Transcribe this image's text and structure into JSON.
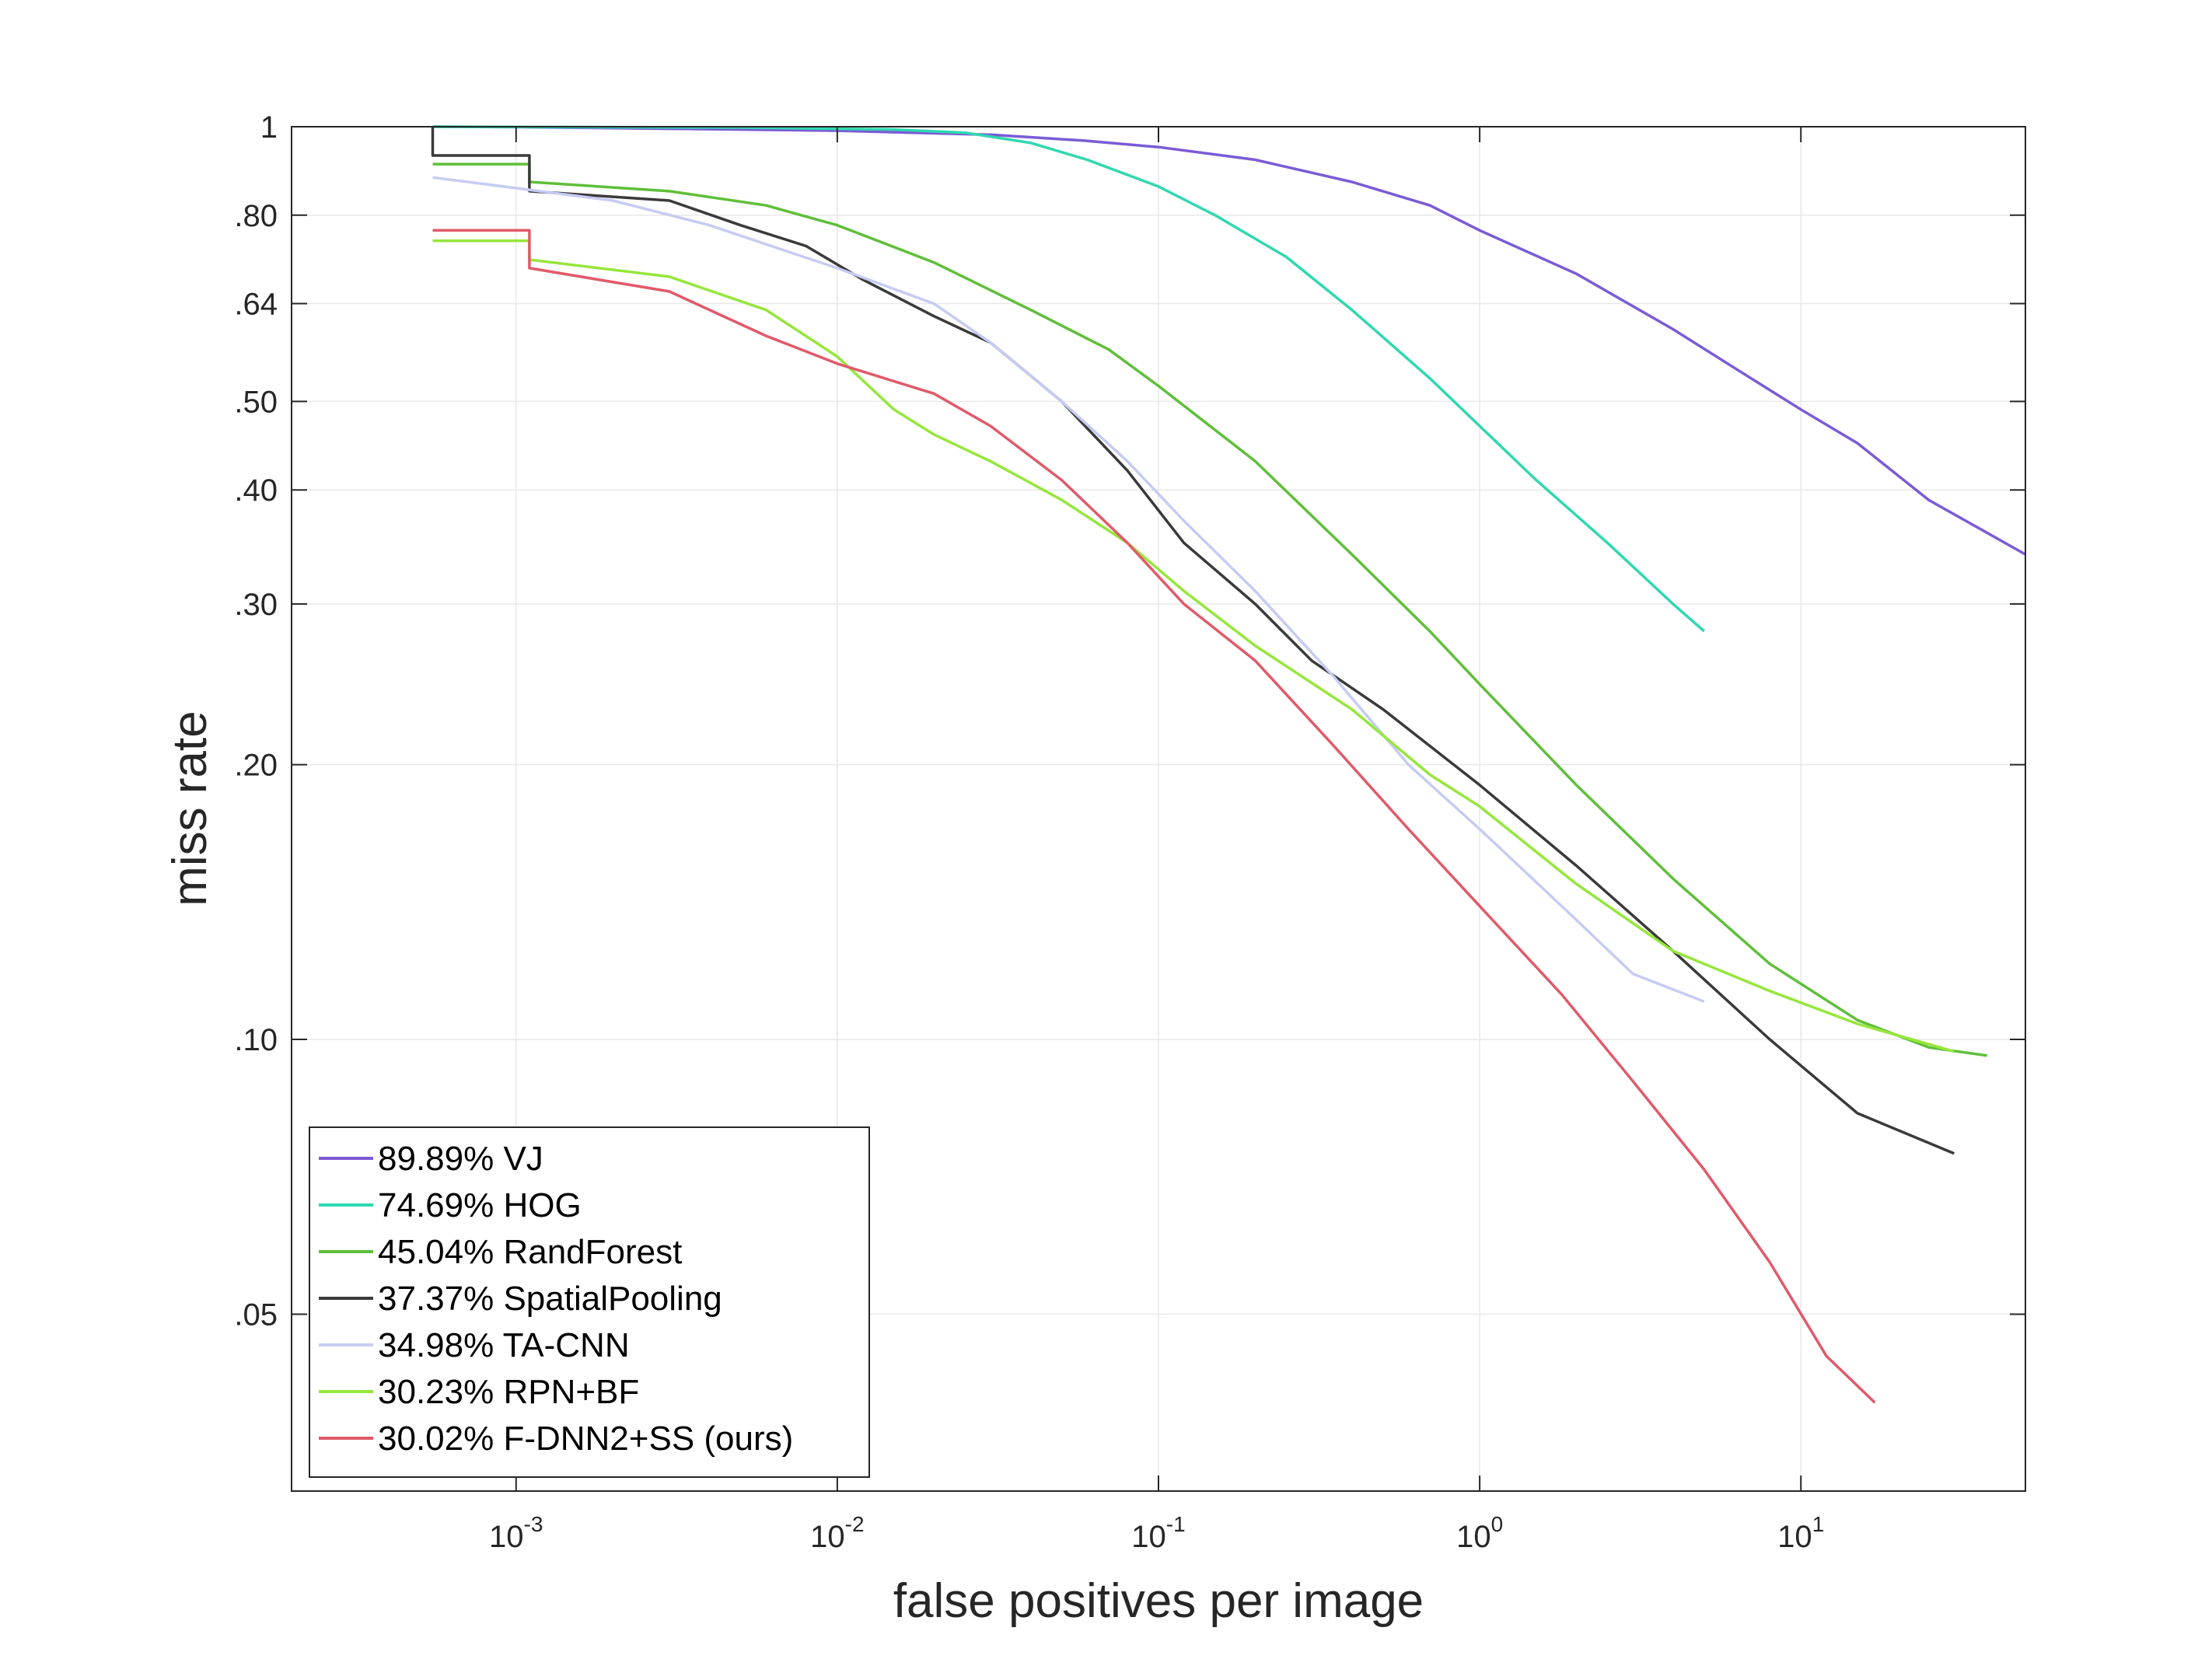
{
  "chart_data": {
    "type": "line",
    "title": "",
    "xlabel": "false positives per image",
    "ylabel": "miss rate",
    "x_scale": "log",
    "y_scale": "log",
    "xlim": [
      0.0002,
      50
    ],
    "ylim": [
      0.032,
      1
    ],
    "grid": true,
    "legend_position": "bottom-left",
    "x_ticks": [
      {
        "value": 0.001,
        "base": "10",
        "exp": "-3"
      },
      {
        "value": 0.01,
        "base": "10",
        "exp": "-2"
      },
      {
        "value": 0.1,
        "base": "10",
        "exp": "-1"
      },
      {
        "value": 1,
        "base": "10",
        "exp": "0"
      },
      {
        "value": 10,
        "base": "10",
        "exp": "1"
      }
    ],
    "y_ticks": [
      {
        "value": 1,
        "label": "1"
      },
      {
        "value": 0.8,
        "label": ".80"
      },
      {
        "value": 0.64,
        "label": ".64"
      },
      {
        "value": 0.5,
        "label": ".50"
      },
      {
        "value": 0.4,
        "label": ".40"
      },
      {
        "value": 0.3,
        "label": ".30"
      },
      {
        "value": 0.2,
        "label": ".20"
      },
      {
        "value": 0.1,
        "label": ".10"
      },
      {
        "value": 0.05,
        "label": ".05"
      }
    ],
    "series": [
      {
        "name": "VJ",
        "legend": "89.89% VJ",
        "color": "#7b5bd6",
        "points": [
          [
            0.00055,
            1.0
          ],
          [
            0.001,
            0.999
          ],
          [
            0.003,
            0.995
          ],
          [
            0.01,
            0.99
          ],
          [
            0.03,
            0.98
          ],
          [
            0.06,
            0.965
          ],
          [
            0.1,
            0.95
          ],
          [
            0.2,
            0.92
          ],
          [
            0.4,
            0.87
          ],
          [
            0.7,
            0.82
          ],
          [
            1.0,
            0.77
          ],
          [
            2.0,
            0.69
          ],
          [
            4.0,
            0.6
          ],
          [
            7.0,
            0.53
          ],
          [
            10.0,
            0.49
          ],
          [
            15.0,
            0.45
          ],
          [
            25.0,
            0.39
          ],
          [
            50.0,
            0.34
          ]
        ]
      },
      {
        "name": "HOG",
        "legend": "74.69% HOG",
        "color": "#2fd8b0",
        "points": [
          [
            0.00055,
            1.0
          ],
          [
            0.005,
            0.998
          ],
          [
            0.015,
            0.993
          ],
          [
            0.025,
            0.985
          ],
          [
            0.04,
            0.96
          ],
          [
            0.06,
            0.92
          ],
          [
            0.1,
            0.86
          ],
          [
            0.15,
            0.8
          ],
          [
            0.25,
            0.72
          ],
          [
            0.4,
            0.63
          ],
          [
            0.7,
            0.53
          ],
          [
            1.0,
            0.47
          ],
          [
            1.5,
            0.41
          ],
          [
            2.5,
            0.35
          ],
          [
            4.0,
            0.3
          ],
          [
            5.0,
            0.28
          ]
        ]
      },
      {
        "name": "RandForest",
        "legend": "45.04% RandForest",
        "color": "#5fbf3a",
        "points": [
          [
            0.00055,
            0.91
          ],
          [
            0.0011,
            0.91
          ],
          [
            0.0011,
            0.87
          ],
          [
            0.003,
            0.85
          ],
          [
            0.006,
            0.82
          ],
          [
            0.01,
            0.78
          ],
          [
            0.02,
            0.71
          ],
          [
            0.04,
            0.63
          ],
          [
            0.07,
            0.57
          ],
          [
            0.1,
            0.52
          ],
          [
            0.2,
            0.43
          ],
          [
            0.4,
            0.34
          ],
          [
            0.7,
            0.28
          ],
          [
            1.0,
            0.245
          ],
          [
            2.0,
            0.19
          ],
          [
            4.0,
            0.15
          ],
          [
            8.0,
            0.121
          ],
          [
            15.0,
            0.105
          ],
          [
            25.0,
            0.098
          ],
          [
            38.0,
            0.096
          ]
        ]
      },
      {
        "name": "SpatialPooling",
        "legend": "37.37% SpatialPooling",
        "color": "#3a3a3a",
        "points": [
          [
            0.00055,
            1.0
          ],
          [
            0.00055,
            0.93
          ],
          [
            0.0011,
            0.93
          ],
          [
            0.0011,
            0.85
          ],
          [
            0.003,
            0.83
          ],
          [
            0.005,
            0.78
          ],
          [
            0.008,
            0.74
          ],
          [
            0.012,
            0.68
          ],
          [
            0.02,
            0.62
          ],
          [
            0.03,
            0.58
          ],
          [
            0.05,
            0.5
          ],
          [
            0.08,
            0.42
          ],
          [
            0.12,
            0.35
          ],
          [
            0.2,
            0.3
          ],
          [
            0.3,
            0.26
          ],
          [
            0.5,
            0.23
          ],
          [
            1.0,
            0.19
          ],
          [
            2.0,
            0.155
          ],
          [
            4.0,
            0.125
          ],
          [
            8.0,
            0.1
          ],
          [
            15.0,
            0.083
          ],
          [
            30.0,
            0.075
          ]
        ]
      },
      {
        "name": "TA-CNN",
        "legend": "34.98% TA-CNN",
        "color": "#c6ccf2",
        "points": [
          [
            0.00055,
            0.88
          ],
          [
            0.002,
            0.83
          ],
          [
            0.004,
            0.78
          ],
          [
            0.007,
            0.73
          ],
          [
            0.01,
            0.7
          ],
          [
            0.02,
            0.64
          ],
          [
            0.03,
            0.58
          ],
          [
            0.05,
            0.5
          ],
          [
            0.08,
            0.43
          ],
          [
            0.12,
            0.37
          ],
          [
            0.2,
            0.31
          ],
          [
            0.35,
            0.25
          ],
          [
            0.6,
            0.2
          ],
          [
            1.0,
            0.17
          ],
          [
            1.8,
            0.14
          ],
          [
            3.0,
            0.118
          ],
          [
            5.0,
            0.11
          ]
        ]
      },
      {
        "name": "RPN+BF",
        "legend": "30.23% RPN+BF",
        "color": "#96e63c",
        "points": [
          [
            0.00055,
            0.75
          ],
          [
            0.0011,
            0.75
          ],
          [
            0.0011,
            0.715
          ],
          [
            0.003,
            0.685
          ],
          [
            0.006,
            0.63
          ],
          [
            0.01,
            0.56
          ],
          [
            0.015,
            0.49
          ],
          [
            0.02,
            0.46
          ],
          [
            0.03,
            0.43
          ],
          [
            0.05,
            0.39
          ],
          [
            0.08,
            0.35
          ],
          [
            0.12,
            0.31
          ],
          [
            0.2,
            0.27
          ],
          [
            0.4,
            0.23
          ],
          [
            0.7,
            0.195
          ],
          [
            1.0,
            0.18
          ],
          [
            2.0,
            0.148
          ],
          [
            4.0,
            0.125
          ],
          [
            8.0,
            0.113
          ],
          [
            15.0,
            0.104
          ],
          [
            30.0,
            0.097
          ]
        ]
      },
      {
        "name": "F-DNN2+SS (ours)",
        "legend": "30.02% F-DNN2+SS (ours)",
        "color": "#e05a6a",
        "points": [
          [
            0.00055,
            0.77
          ],
          [
            0.0011,
            0.77
          ],
          [
            0.0011,
            0.7
          ],
          [
            0.003,
            0.66
          ],
          [
            0.006,
            0.59
          ],
          [
            0.01,
            0.55
          ],
          [
            0.02,
            0.51
          ],
          [
            0.03,
            0.47
          ],
          [
            0.05,
            0.41
          ],
          [
            0.08,
            0.35
          ],
          [
            0.12,
            0.3
          ],
          [
            0.2,
            0.26
          ],
          [
            0.35,
            0.21
          ],
          [
            0.6,
            0.17
          ],
          [
            1.0,
            0.14
          ],
          [
            1.8,
            0.112
          ],
          [
            3.0,
            0.09
          ],
          [
            5.0,
            0.072
          ],
          [
            8.0,
            0.057
          ],
          [
            12.0,
            0.045
          ],
          [
            17.0,
            0.04
          ]
        ]
      }
    ]
  }
}
